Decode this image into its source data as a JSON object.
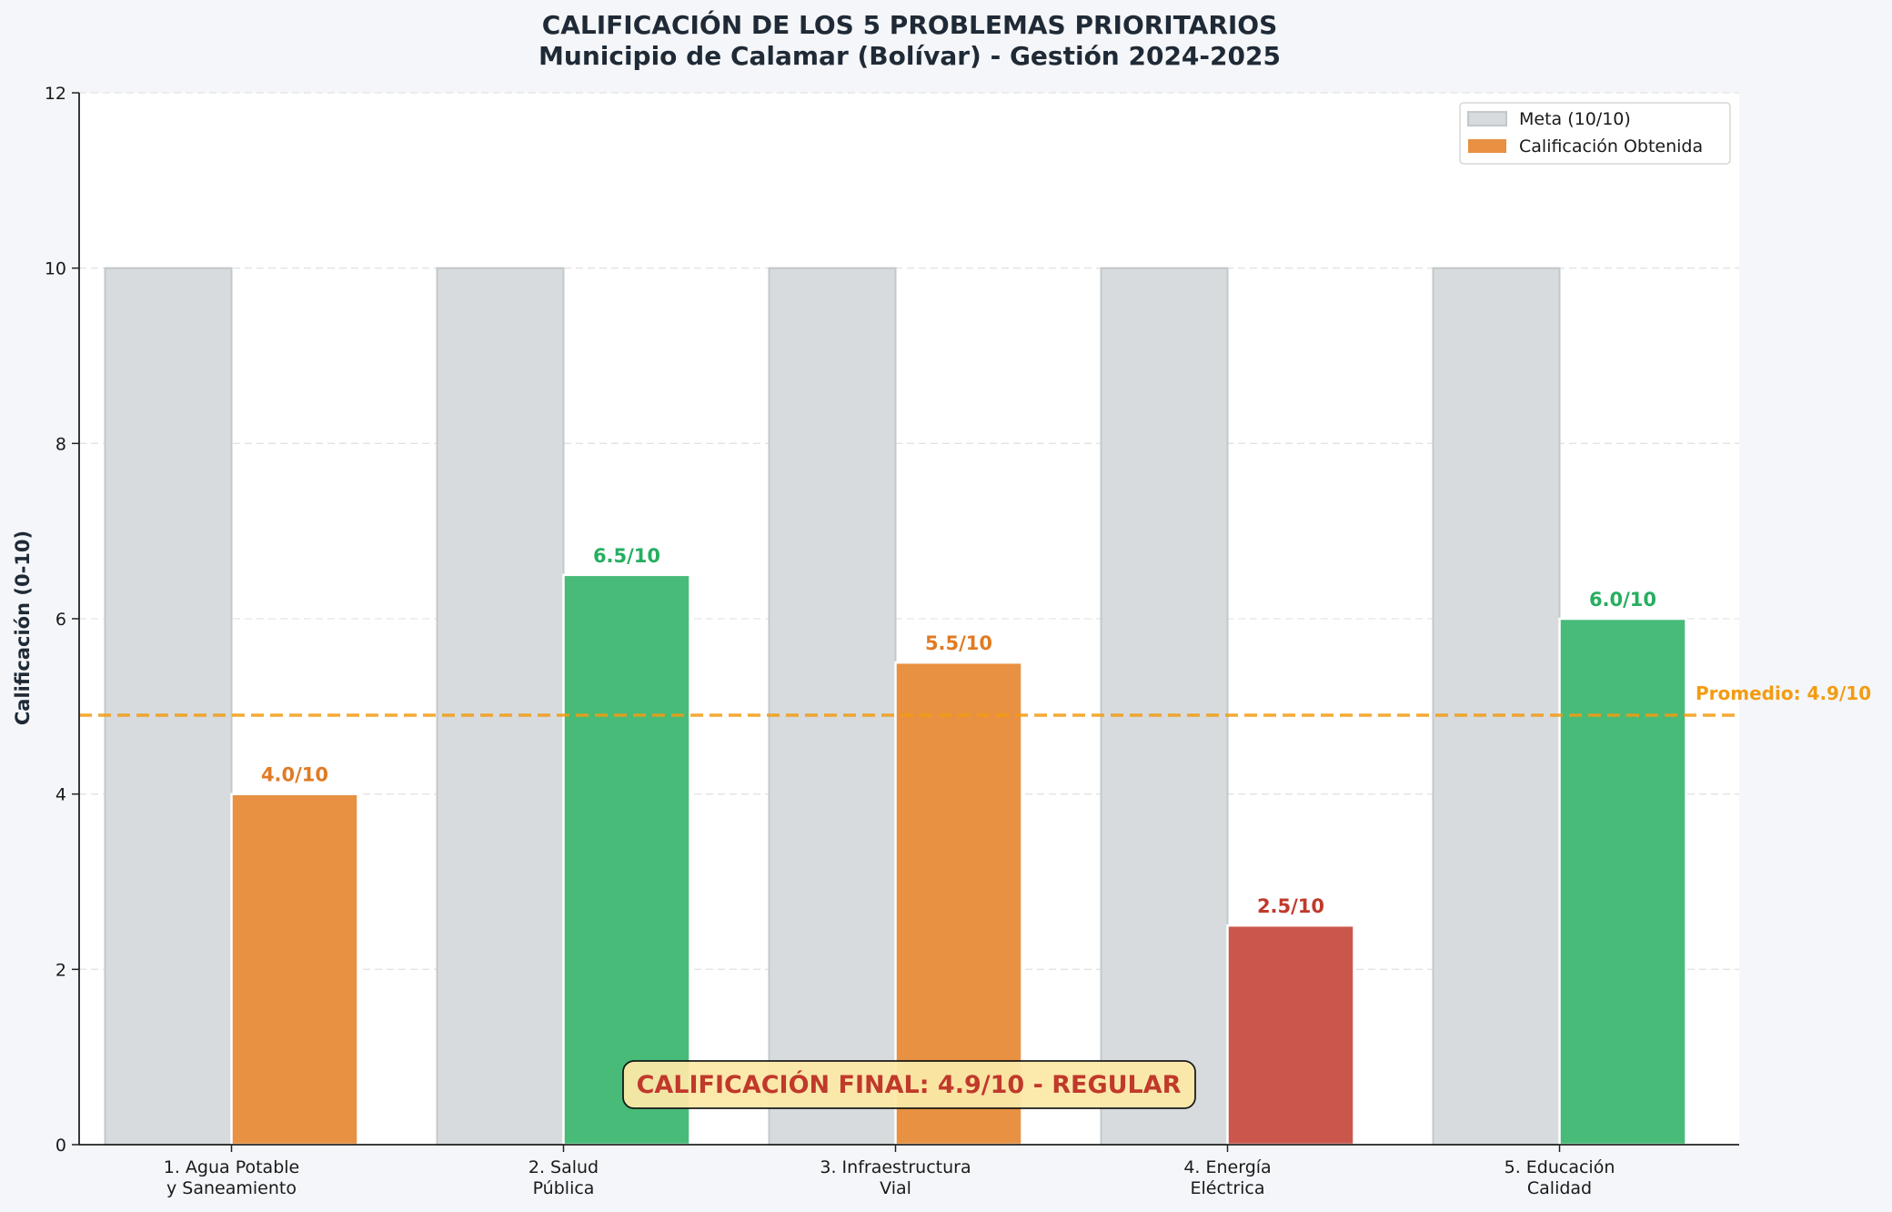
{
  "chart_data": {
    "type": "bar",
    "title": "CALIFICACIÓN DE LOS 5 PROBLEMAS PRIORITARIOS",
    "subtitle": "Municipio de Calamar (Bolívar) - Gestión 2024-2025",
    "xlabel": "",
    "ylabel": "Calificación (0-10)",
    "ylim": [
      0,
      12
    ],
    "yticks": [
      0,
      2,
      4,
      6,
      8,
      10,
      12
    ],
    "grid": true,
    "legend_position": "top-right",
    "categories": [
      [
        "1. Agua Potable",
        "y Saneamiento"
      ],
      [
        "2. Salud",
        "Pública"
      ],
      [
        "3. Infraestructura",
        "Vial"
      ],
      [
        "4. Energía",
        "Eléctrica"
      ],
      [
        "5. Educación",
        "Calidad"
      ]
    ],
    "series": [
      {
        "name": "Meta (10/10)",
        "values": [
          10,
          10,
          10,
          10,
          10
        ],
        "color": "#d7dbdd"
      },
      {
        "name": "Calificación Obtenida",
        "values": [
          4.0,
          6.5,
          5.5,
          2.5,
          6.0
        ],
        "colors": [
          "#e89142",
          "#48bb78",
          "#e89142",
          "#cb574c",
          "#48bb78"
        ]
      }
    ],
    "value_labels": [
      "4.0/10",
      "6.5/10",
      "5.5/10",
      "2.5/10",
      "6.0/10"
    ],
    "value_label_colors": [
      "#e07b24",
      "#27ae60",
      "#e07b24",
      "#c0392b",
      "#27ae60"
    ],
    "average": {
      "value": 4.9,
      "label": "Promedio: 4.9/10",
      "color": "#f39c12"
    },
    "final_annotation": {
      "text": "CALIFICACIÓN FINAL: 4.9/10 - REGULAR",
      "text_color": "#c0392b",
      "box_color": "#fce9a8"
    }
  }
}
